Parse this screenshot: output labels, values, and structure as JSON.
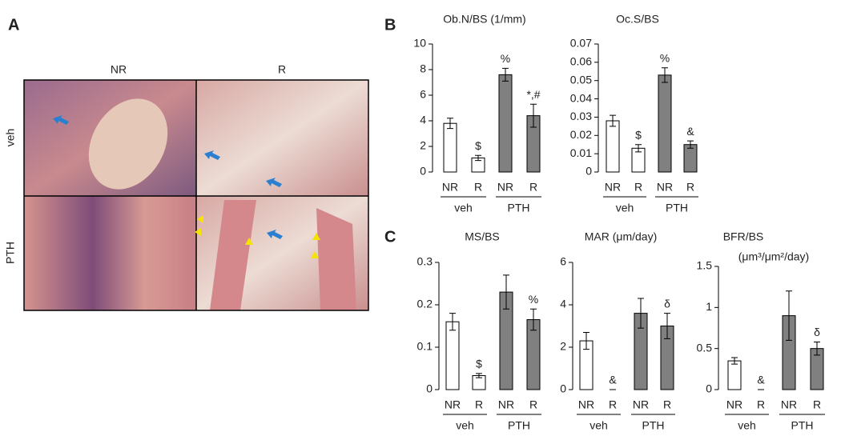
{
  "figure": {
    "panels": [
      "A",
      "B",
      "C"
    ],
    "columns": [
      "NR",
      "R"
    ],
    "rows": [
      "veh",
      "PTH"
    ]
  },
  "chart_data": [
    {
      "type": "bar",
      "title": "Ob.N/BS (1/mm)",
      "categories": [
        "NR",
        "R",
        "NR",
        "R"
      ],
      "groups": [
        "veh",
        "PTH"
      ],
      "values": [
        3.8,
        1.1,
        7.6,
        4.4
      ],
      "errors": [
        0.4,
        0.2,
        0.5,
        0.9
      ],
      "annotations": [
        null,
        "$",
        "%",
        "*,#"
      ],
      "colors": [
        "#ffffff",
        "#ffffff",
        "#808080",
        "#808080"
      ],
      "ylim": [
        0,
        10
      ],
      "yticks": [
        0,
        2,
        4,
        6,
        8,
        10
      ]
    },
    {
      "type": "bar",
      "title": "Oc.S/BS",
      "categories": [
        "NR",
        "R",
        "NR",
        "R"
      ],
      "groups": [
        "veh",
        "PTH"
      ],
      "values": [
        0.028,
        0.013,
        0.053,
        0.015
      ],
      "errors": [
        0.003,
        0.002,
        0.004,
        0.002
      ],
      "annotations": [
        null,
        "$",
        "%",
        "&"
      ],
      "colors": [
        "#ffffff",
        "#ffffff",
        "#808080",
        "#808080"
      ],
      "ylim": [
        0,
        0.07
      ],
      "yticks": [
        0,
        0.01,
        0.02,
        0.03,
        0.04,
        0.05,
        0.06,
        0.07
      ]
    },
    {
      "type": "bar",
      "title": "MS/BS",
      "categories": [
        "NR",
        "R",
        "NR",
        "R"
      ],
      "groups": [
        "veh",
        "PTH"
      ],
      "values": [
        0.16,
        0.033,
        0.23,
        0.165
      ],
      "errors": [
        0.02,
        0.005,
        0.04,
        0.025
      ],
      "annotations": [
        null,
        "$",
        null,
        "%"
      ],
      "colors": [
        "#ffffff",
        "#ffffff",
        "#808080",
        "#808080"
      ],
      "ylim": [
        0,
        0.3
      ],
      "yticks": [
        0,
        0.1,
        0.2,
        0.3
      ]
    },
    {
      "type": "bar",
      "title": "MAR (μm/day)",
      "categories": [
        "NR",
        "R",
        "NR",
        "R"
      ],
      "groups": [
        "veh",
        "PTH"
      ],
      "values": [
        2.3,
        0,
        3.6,
        3.0
      ],
      "errors": [
        0.4,
        0,
        0.7,
        0.6
      ],
      "annotations": [
        null,
        "&",
        null,
        "δ"
      ],
      "colors": [
        "#ffffff",
        "#ffffff",
        "#808080",
        "#808080"
      ],
      "ylim": [
        0,
        6
      ],
      "yticks": [
        0,
        2,
        4,
        6
      ]
    },
    {
      "type": "bar",
      "title": "BFR/BS",
      "subtitle": "(μm³/μm²/day)",
      "categories": [
        "NR",
        "R",
        "NR",
        "R"
      ],
      "groups": [
        "veh",
        "PTH"
      ],
      "values": [
        0.35,
        0,
        0.9,
        0.5
      ],
      "errors": [
        0.04,
        0,
        0.3,
        0.08
      ],
      "annotations": [
        null,
        "&",
        null,
        "δ"
      ],
      "colors": [
        "#ffffff",
        "#ffffff",
        "#808080",
        "#808080"
      ],
      "ylim": [
        0,
        1.5
      ],
      "yticks": [
        0,
        0.5,
        1,
        1.5
      ]
    }
  ]
}
